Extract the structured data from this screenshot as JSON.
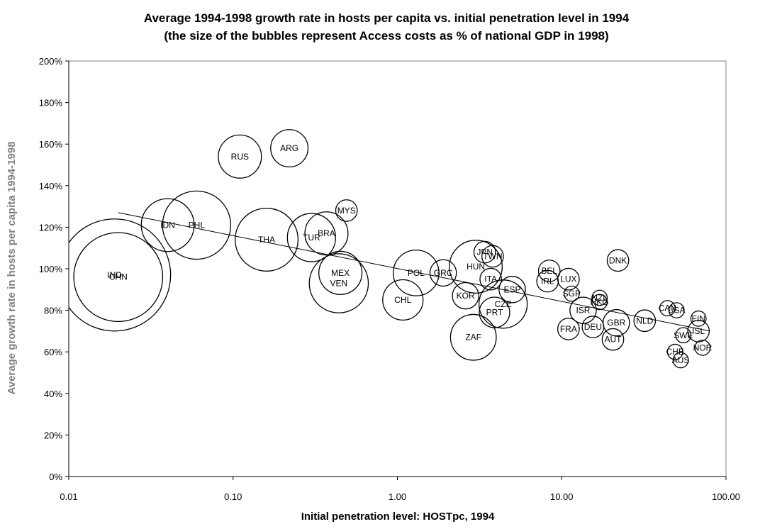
{
  "chart_data": {
    "type": "scatter",
    "title": "Average 1994-1998 growth rate in hosts per capita vs. initial penetration level in 1994",
    "subtitle": "(the size of the bubbles represent Access costs as % of national GDP in 1998)",
    "xlabel": "Initial penetration level: HOSTpc, 1994",
    "ylabel": "Average growth rate in hosts per capita 1994-1998",
    "x_scale": "log",
    "xlim": [
      0.01,
      100
    ],
    "ylim": [
      0,
      200
    ],
    "x_ticks": [
      "0.01",
      "0.10",
      "1.00",
      "10.00",
      "100.00"
    ],
    "y_ticks": [
      "0%",
      "20%",
      "40%",
      "60%",
      "80%",
      "100%",
      "120%",
      "140%",
      "160%",
      "180%",
      "200%"
    ],
    "grid": false,
    "legend": "none",
    "points": [
      {
        "label": "IND",
        "x": 0.019,
        "y": 97,
        "size": 5.4
      },
      {
        "label": "CHN",
        "x": 0.02,
        "y": 96,
        "size": 3.4
      },
      {
        "label": "IDN",
        "x": 0.04,
        "y": 121,
        "size": 1.2
      },
      {
        "label": "PHL",
        "x": 0.06,
        "y": 121,
        "size": 2.0
      },
      {
        "label": "RUS",
        "x": 0.11,
        "y": 154,
        "size": 0.8
      },
      {
        "label": "ARG",
        "x": 0.22,
        "y": 158,
        "size": 0.6
      },
      {
        "label": "THA",
        "x": 0.16,
        "y": 114,
        "size": 1.7
      },
      {
        "label": "TUR",
        "x": 0.3,
        "y": 115,
        "size": 1.0
      },
      {
        "label": "BRA",
        "x": 0.37,
        "y": 117,
        "size": 0.8
      },
      {
        "label": "MYS",
        "x": 0.49,
        "y": 128,
        "size": 0.2
      },
      {
        "label": "MEX",
        "x": 0.45,
        "y": 98,
        "size": 0.8
      },
      {
        "label": "VEN",
        "x": 0.44,
        "y": 93,
        "size": 1.5
      },
      {
        "label": "POL",
        "x": 1.3,
        "y": 98,
        "size": 0.9
      },
      {
        "label": "GRC",
        "x": 1.9,
        "y": 98,
        "size": 0.3
      },
      {
        "label": "CHL",
        "x": 1.08,
        "y": 85,
        "size": 0.7
      },
      {
        "label": "KOR",
        "x": 2.6,
        "y": 87,
        "size": 0.3
      },
      {
        "label": "HUN",
        "x": 3.0,
        "y": 101,
        "size": 1.2
      },
      {
        "label": "JPN",
        "x": 3.4,
        "y": 108,
        "size": 0.2
      },
      {
        "label": "TWN",
        "x": 3.8,
        "y": 106,
        "size": 0.2
      },
      {
        "label": "ITA",
        "x": 3.7,
        "y": 95,
        "size": 0.2
      },
      {
        "label": "ESP",
        "x": 5.0,
        "y": 90,
        "size": 0.3
      },
      {
        "label": "CZE",
        "x": 4.4,
        "y": 83,
        "size": 1.0
      },
      {
        "label": "PRT",
        "x": 3.9,
        "y": 79,
        "size": 0.4
      },
      {
        "label": "ZAF",
        "x": 2.9,
        "y": 67,
        "size": 0.9
      },
      {
        "label": "BEL",
        "x": 8.4,
        "y": 99,
        "size": 0.2
      },
      {
        "label": "IRL",
        "x": 8.2,
        "y": 94,
        "size": 0.2
      },
      {
        "label": "LUX",
        "x": 11.0,
        "y": 95,
        "size": 0.2
      },
      {
        "label": "SGP",
        "x": 11.5,
        "y": 88,
        "size": 0.1
      },
      {
        "label": "DNK",
        "x": 22.0,
        "y": 104,
        "size": 0.2
      },
      {
        "label": "NZL",
        "x": 17.0,
        "y": 86,
        "size": 0.1
      },
      {
        "label": "HKG",
        "x": 17.0,
        "y": 84,
        "size": 0.1
      },
      {
        "label": "ISR",
        "x": 13.5,
        "y": 80,
        "size": 0.3
      },
      {
        "label": "FRA",
        "x": 11.0,
        "y": 71,
        "size": 0.2
      },
      {
        "label": "DEU",
        "x": 15.5,
        "y": 72,
        "size": 0.2
      },
      {
        "label": "GBR",
        "x": 21.5,
        "y": 74,
        "size": 0.3
      },
      {
        "label": "AUT",
        "x": 20.5,
        "y": 66,
        "size": 0.2
      },
      {
        "label": "NLD",
        "x": 32.0,
        "y": 75,
        "size": 0.2
      },
      {
        "label": "CAN",
        "x": 44.0,
        "y": 81,
        "size": 0.1
      },
      {
        "label": "USA",
        "x": 50.0,
        "y": 80,
        "size": 0.1
      },
      {
        "label": "FIN",
        "x": 68.0,
        "y": 76,
        "size": 0.1
      },
      {
        "label": "ISL",
        "x": 68.0,
        "y": 70,
        "size": 0.2
      },
      {
        "label": "SWE",
        "x": 55.0,
        "y": 68,
        "size": 0.1
      },
      {
        "label": "NOR",
        "x": 72.0,
        "y": 62,
        "size": 0.1
      },
      {
        "label": "CHE",
        "x": 49.0,
        "y": 60,
        "size": 0.1
      },
      {
        "label": "AUS",
        "x": 53.0,
        "y": 56,
        "size": 0.1
      }
    ],
    "trendline": {
      "x": [
        0.02,
        80
      ],
      "y": [
        127,
        70
      ]
    }
  }
}
